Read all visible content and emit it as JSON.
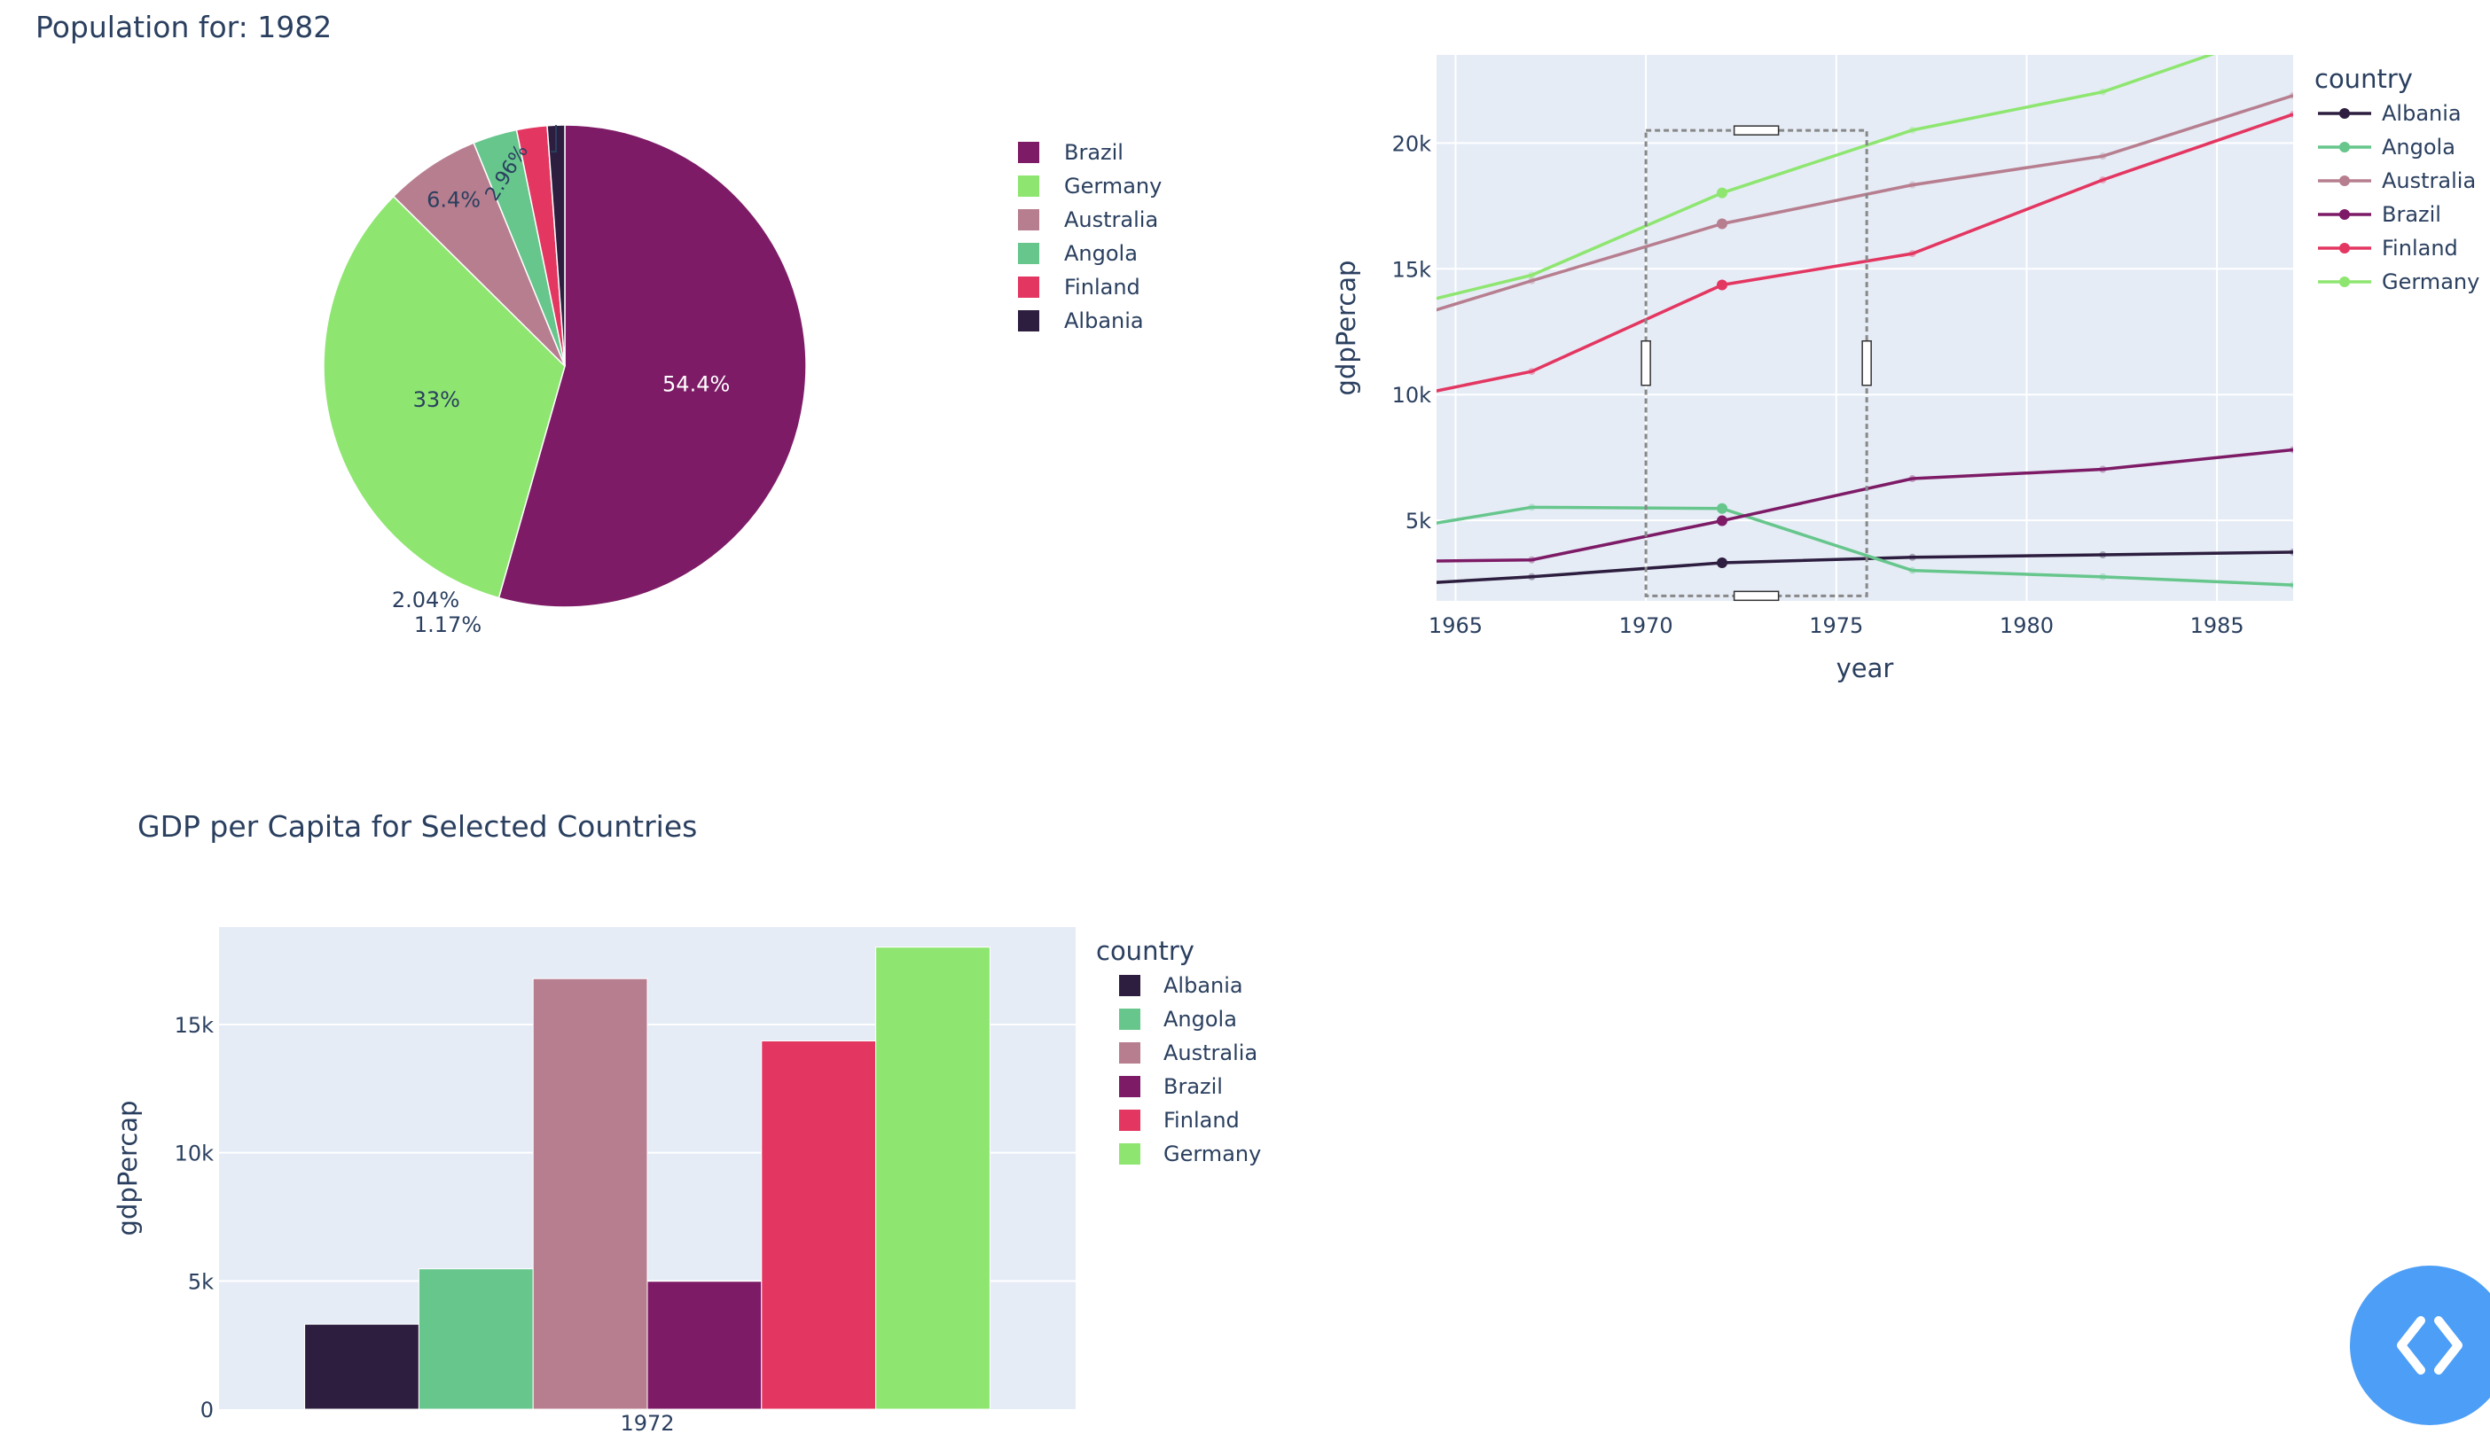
{
  "colors": {
    "Albania": "#2d1e3f",
    "Angola": "#66c68c",
    "Australia": "#b77e8f",
    "Brazil": "#7d1b66",
    "Finland": "#e33661",
    "Germany": "#8ee670",
    "plot_bg": "#e5ecf6",
    "text": "#2a3f5f",
    "dev_button": "#4c9ef7"
  },
  "icons": {
    "dev_tools": "code-brackets-icon"
  },
  "pie": {
    "title": "Population for: 1982",
    "legend_order": [
      "Brazil",
      "Germany",
      "Australia",
      "Angola",
      "Finland",
      "Albania"
    ]
  },
  "line": {
    "legend_title": "country",
    "legend_order": [
      "Albania",
      "Angola",
      "Australia",
      "Brazil",
      "Finland",
      "Germany"
    ]
  },
  "bar": {
    "title": "GDP per Capita for Selected Countries",
    "legend_title": "country",
    "legend_order": [
      "Albania",
      "Angola",
      "Australia",
      "Brazil",
      "Finland",
      "Germany"
    ]
  },
  "chart_data": [
    {
      "type": "pie",
      "title": "Population for: 1982",
      "labels": [
        "Brazil",
        "Germany",
        "Australia",
        "Angola",
        "Finland",
        "Albania"
      ],
      "values": [
        54.4,
        33,
        6.4,
        2.96,
        2.04,
        1.17
      ],
      "text_labels": [
        "54.4%",
        "33%",
        "6.4%",
        "2.96%",
        "2.04%",
        "1.17%"
      ],
      "legend": "right"
    },
    {
      "type": "line",
      "xlabel": "year",
      "ylabel": "gdpPercap",
      "xlim": [
        1964.5,
        1987
      ],
      "ylim": [
        1800,
        23500
      ],
      "x_ticks": [
        1965,
        1970,
        1975,
        1980,
        1985
      ],
      "x_tick_labels": [
        "1965",
        "1970",
        "1975",
        "1980",
        "1985"
      ],
      "y_ticks": [
        5000,
        10000,
        15000,
        20000
      ],
      "y_tick_labels": [
        "5k",
        "10k",
        "15k",
        "20k"
      ],
      "grid": true,
      "legend": "right",
      "selection": {
        "x": [
          1970,
          1975.8
        ],
        "y": [
          2000,
          20500
        ]
      },
      "x": [
        1962,
        1967,
        1972,
        1977,
        1982,
        1987
      ],
      "series": [
        {
          "name": "Albania",
          "values": [
            2312,
            2760,
            3313,
            3533,
            3631,
            3739
          ]
        },
        {
          "name": "Angola",
          "values": [
            4269,
            5523,
            5473,
            3009,
            2757,
            2430
          ]
        },
        {
          "name": "Australia",
          "values": [
            12217,
            14526,
            16789,
            18334,
            19477,
            21889
          ]
        },
        {
          "name": "Brazil",
          "values": [
            3337,
            3430,
            4986,
            6660,
            7031,
            7807
          ]
        },
        {
          "name": "Finland",
          "values": [
            9372,
            10921,
            14359,
            15605,
            18533,
            21141
          ]
        },
        {
          "name": "Germany",
          "values": [
            12902,
            14746,
            18016,
            20513,
            22032,
            24639
          ]
        }
      ]
    },
    {
      "type": "bar",
      "title": "GDP per Capita for Selected Countries",
      "categories": [
        "1972"
      ],
      "ylabel": "gdpPercap",
      "ylim": [
        0,
        18800
      ],
      "y_ticks": [
        0,
        5000,
        10000,
        15000
      ],
      "y_tick_labels": [
        "0",
        "5k",
        "10k",
        "15k"
      ],
      "grid": true,
      "legend": "right",
      "series": [
        {
          "name": "Albania",
          "values": [
            3313
          ]
        },
        {
          "name": "Angola",
          "values": [
            5473
          ]
        },
        {
          "name": "Australia",
          "values": [
            16789
          ]
        },
        {
          "name": "Brazil",
          "values": [
            4986
          ]
        },
        {
          "name": "Finland",
          "values": [
            14359
          ]
        },
        {
          "name": "Germany",
          "values": [
            18016
          ]
        }
      ]
    }
  ]
}
